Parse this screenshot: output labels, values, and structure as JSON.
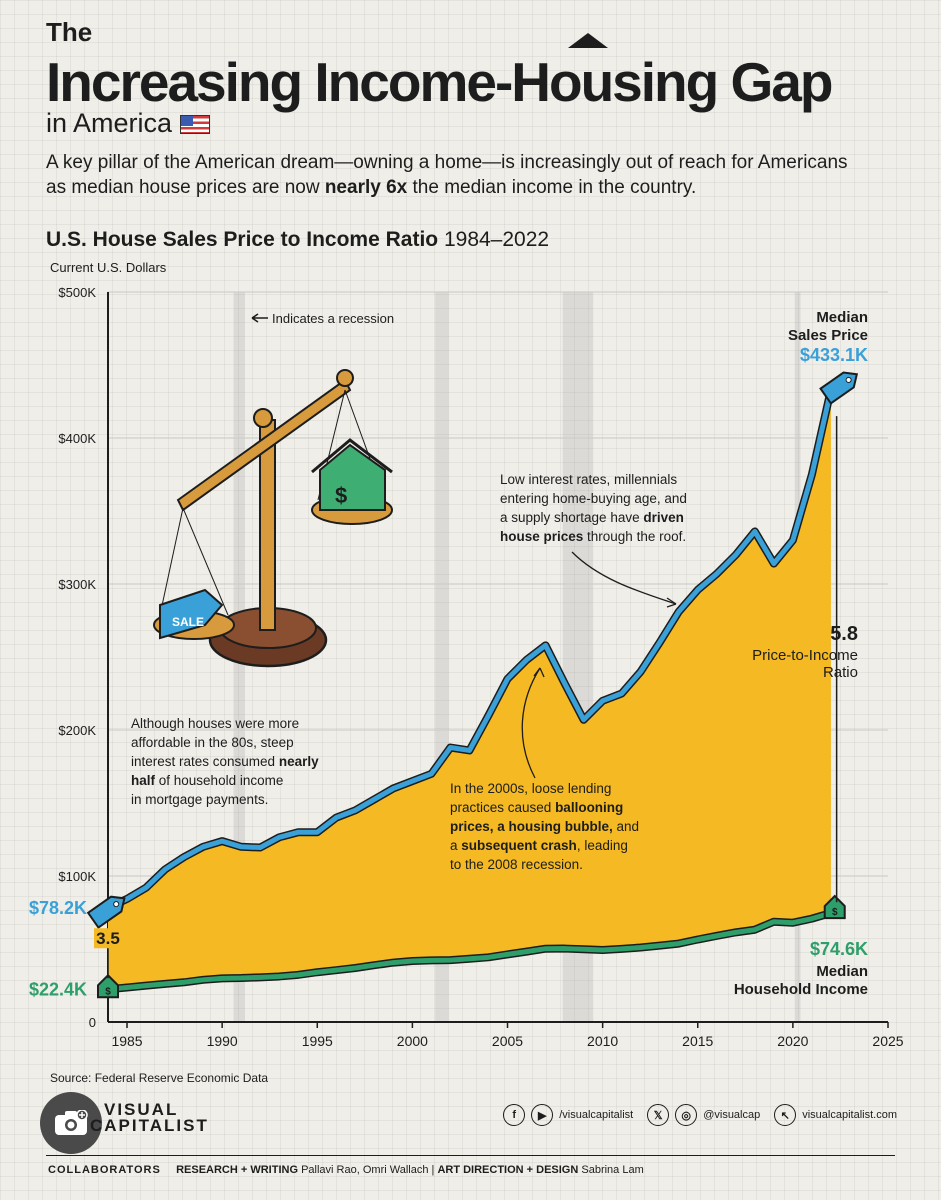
{
  "title": {
    "line1": "The",
    "main": "Increasing Income-Housing Gap",
    "line3": "in America"
  },
  "lede": {
    "part1": "A key pillar of the American dream—owning a home—is increasingly out of reach for Americans as median house prices are now ",
    "bold": "nearly 6x",
    "part2": " the median income in the country."
  },
  "chart_heading": {
    "bold": "U.S. House Sales Price to Income Ratio",
    "years": " 1984–2022"
  },
  "chart_data": {
    "type": "area",
    "ylabel": "Current U.S. Dollars",
    "xlim": [
      1984,
      2025
    ],
    "ylim": [
      0,
      500
    ],
    "yticks": [
      {
        "v": 0,
        "label": "0"
      },
      {
        "v": 100,
        "label": "$100K"
      },
      {
        "v": 200,
        "label": "$200K"
      },
      {
        "v": 300,
        "label": "$300K"
      },
      {
        "v": 400,
        "label": "$400K"
      },
      {
        "v": 500,
        "label": "$500K"
      }
    ],
    "xticks": [
      1985,
      1990,
      1995,
      2000,
      2005,
      2010,
      2015,
      2020,
      2025
    ],
    "recessions": [
      [
        1990.6,
        1991.2
      ],
      [
        2001.2,
        2001.9
      ],
      [
        2007.9,
        2009.5
      ],
      [
        2020.1,
        2020.4
      ]
    ],
    "series": [
      {
        "name": "Median Sales Price",
        "color": "#3aa0d8",
        "fill": "#f4b923",
        "x": [
          1984,
          1985,
          1986,
          1987,
          1988,
          1989,
          1990,
          1991,
          1992,
          1993,
          1994,
          1995,
          1996,
          1997,
          1998,
          1999,
          2000,
          2001,
          2002,
          2003,
          2004,
          2005,
          2006,
          2007,
          2008,
          2009,
          2010,
          2011,
          2012,
          2013,
          2014,
          2015,
          2016,
          2017,
          2018,
          2019,
          2020,
          2021,
          2022
        ],
        "values": [
          78.2,
          84.3,
          92.0,
          104.5,
          113.0,
          120.0,
          123.9,
          120.0,
          119.5,
          126.5,
          130.0,
          130.0,
          140.0,
          145.0,
          152.5,
          160.0,
          165.0,
          170.0,
          188.0,
          186.0,
          210.0,
          235.0,
          248.0,
          258.0,
          232.0,
          207.0,
          220.0,
          225.0,
          240.0,
          260.0,
          281.0,
          296.0,
          307.0,
          320.0,
          336.0,
          314.0,
          330.0,
          375.0,
          433.1
        ]
      },
      {
        "name": "Median Household Income",
        "color": "#2e9e6a",
        "x": [
          1984,
          1985,
          1986,
          1987,
          1988,
          1989,
          1990,
          1991,
          1992,
          1993,
          1994,
          1995,
          1996,
          1997,
          1998,
          1999,
          2000,
          2001,
          2002,
          2003,
          2004,
          2005,
          2006,
          2007,
          2008,
          2009,
          2010,
          2011,
          2012,
          2013,
          2014,
          2015,
          2016,
          2017,
          2018,
          2019,
          2020,
          2021,
          2022
        ],
        "values": [
          22.4,
          23.6,
          24.9,
          26.1,
          27.2,
          28.9,
          29.9,
          30.1,
          30.6,
          31.2,
          32.3,
          34.1,
          35.5,
          37.0,
          38.9,
          40.7,
          41.8,
          42.2,
          42.4,
          43.3,
          44.3,
          46.3,
          48.2,
          50.2,
          50.3,
          49.8,
          49.3,
          50.1,
          51.0,
          52.3,
          53.7,
          56.5,
          59.0,
          61.4,
          63.2,
          68.7,
          68.0,
          70.8,
          74.6
        ]
      }
    ],
    "labels": {
      "price_value": "$78.2K",
      "income_value": "$22.4K",
      "ratio_start": "3.5",
      "price_end_name": [
        "Median",
        "Sales Price"
      ],
      "price_end_value": "$433.1K",
      "income_end_value": "$74.6K",
      "income_end_name": [
        "Median",
        "Household Income"
      ],
      "ratio_end": "5.8",
      "ratio_end_name": [
        "Price-to-Income",
        "Ratio"
      ],
      "recession_note": "Indicates a recession"
    },
    "annotations": {
      "eighties": [
        [
          {
            "t": "Although houses were more"
          }
        ],
        [
          {
            "t": "affordable in the 80s, steep"
          }
        ],
        [
          {
            "t": "interest rates consumed "
          },
          {
            "t": "nearly",
            "b": true
          }
        ],
        [
          {
            "t": "half",
            "b": true
          },
          {
            "t": " of household income"
          }
        ],
        [
          {
            "t": "in mortgage payments."
          }
        ]
      ],
      "twothousands": [
        [
          {
            "t": "In the 2000s, loose lending"
          }
        ],
        [
          {
            "t": "practices caused "
          },
          {
            "t": "ballooning",
            "b": true
          }
        ],
        [
          {
            "t": "prices, a housing bubble,",
            "b": true
          },
          {
            "t": " and"
          }
        ],
        [
          {
            "t": "a "
          },
          {
            "t": "subsequent crash",
            "b": true
          },
          {
            "t": ", leading"
          }
        ],
        [
          {
            "t": "to the 2008 recession."
          }
        ]
      ],
      "recent": [
        [
          {
            "t": "Low interest rates, millennials"
          }
        ],
        [
          {
            "t": "entering home-buying age, and"
          }
        ],
        [
          {
            "t": "a supply shortage have "
          },
          {
            "t": "driven",
            "b": true
          }
        ],
        [
          {
            "t": "house prices",
            "b": true
          },
          {
            "t": " through the roof."
          }
        ]
      ]
    },
    "illustration": {
      "tag_text": "SALE"
    }
  },
  "source": "Source: Federal Reserve Economic Data",
  "logo": [
    "VISUAL",
    "CAPITALIST"
  ],
  "socials": [
    {
      "icons": [
        "f",
        "▶"
      ],
      "text": "/visualcapitalist"
    },
    {
      "icons": [
        "𝕏",
        "◎"
      ],
      "text": "@visualcap"
    },
    {
      "icons": [
        "↖"
      ],
      "text": "visualcapitalist.com"
    }
  ],
  "collaborators": {
    "label": "COLLABORATORS",
    "research_label": "RESEARCH + WRITING",
    "research_names": "Pallavi Rao, Omri Wallach",
    "sep": "|",
    "art_label": "ART DIRECTION + DESIGN",
    "art_names": "Sabrina Lam"
  }
}
